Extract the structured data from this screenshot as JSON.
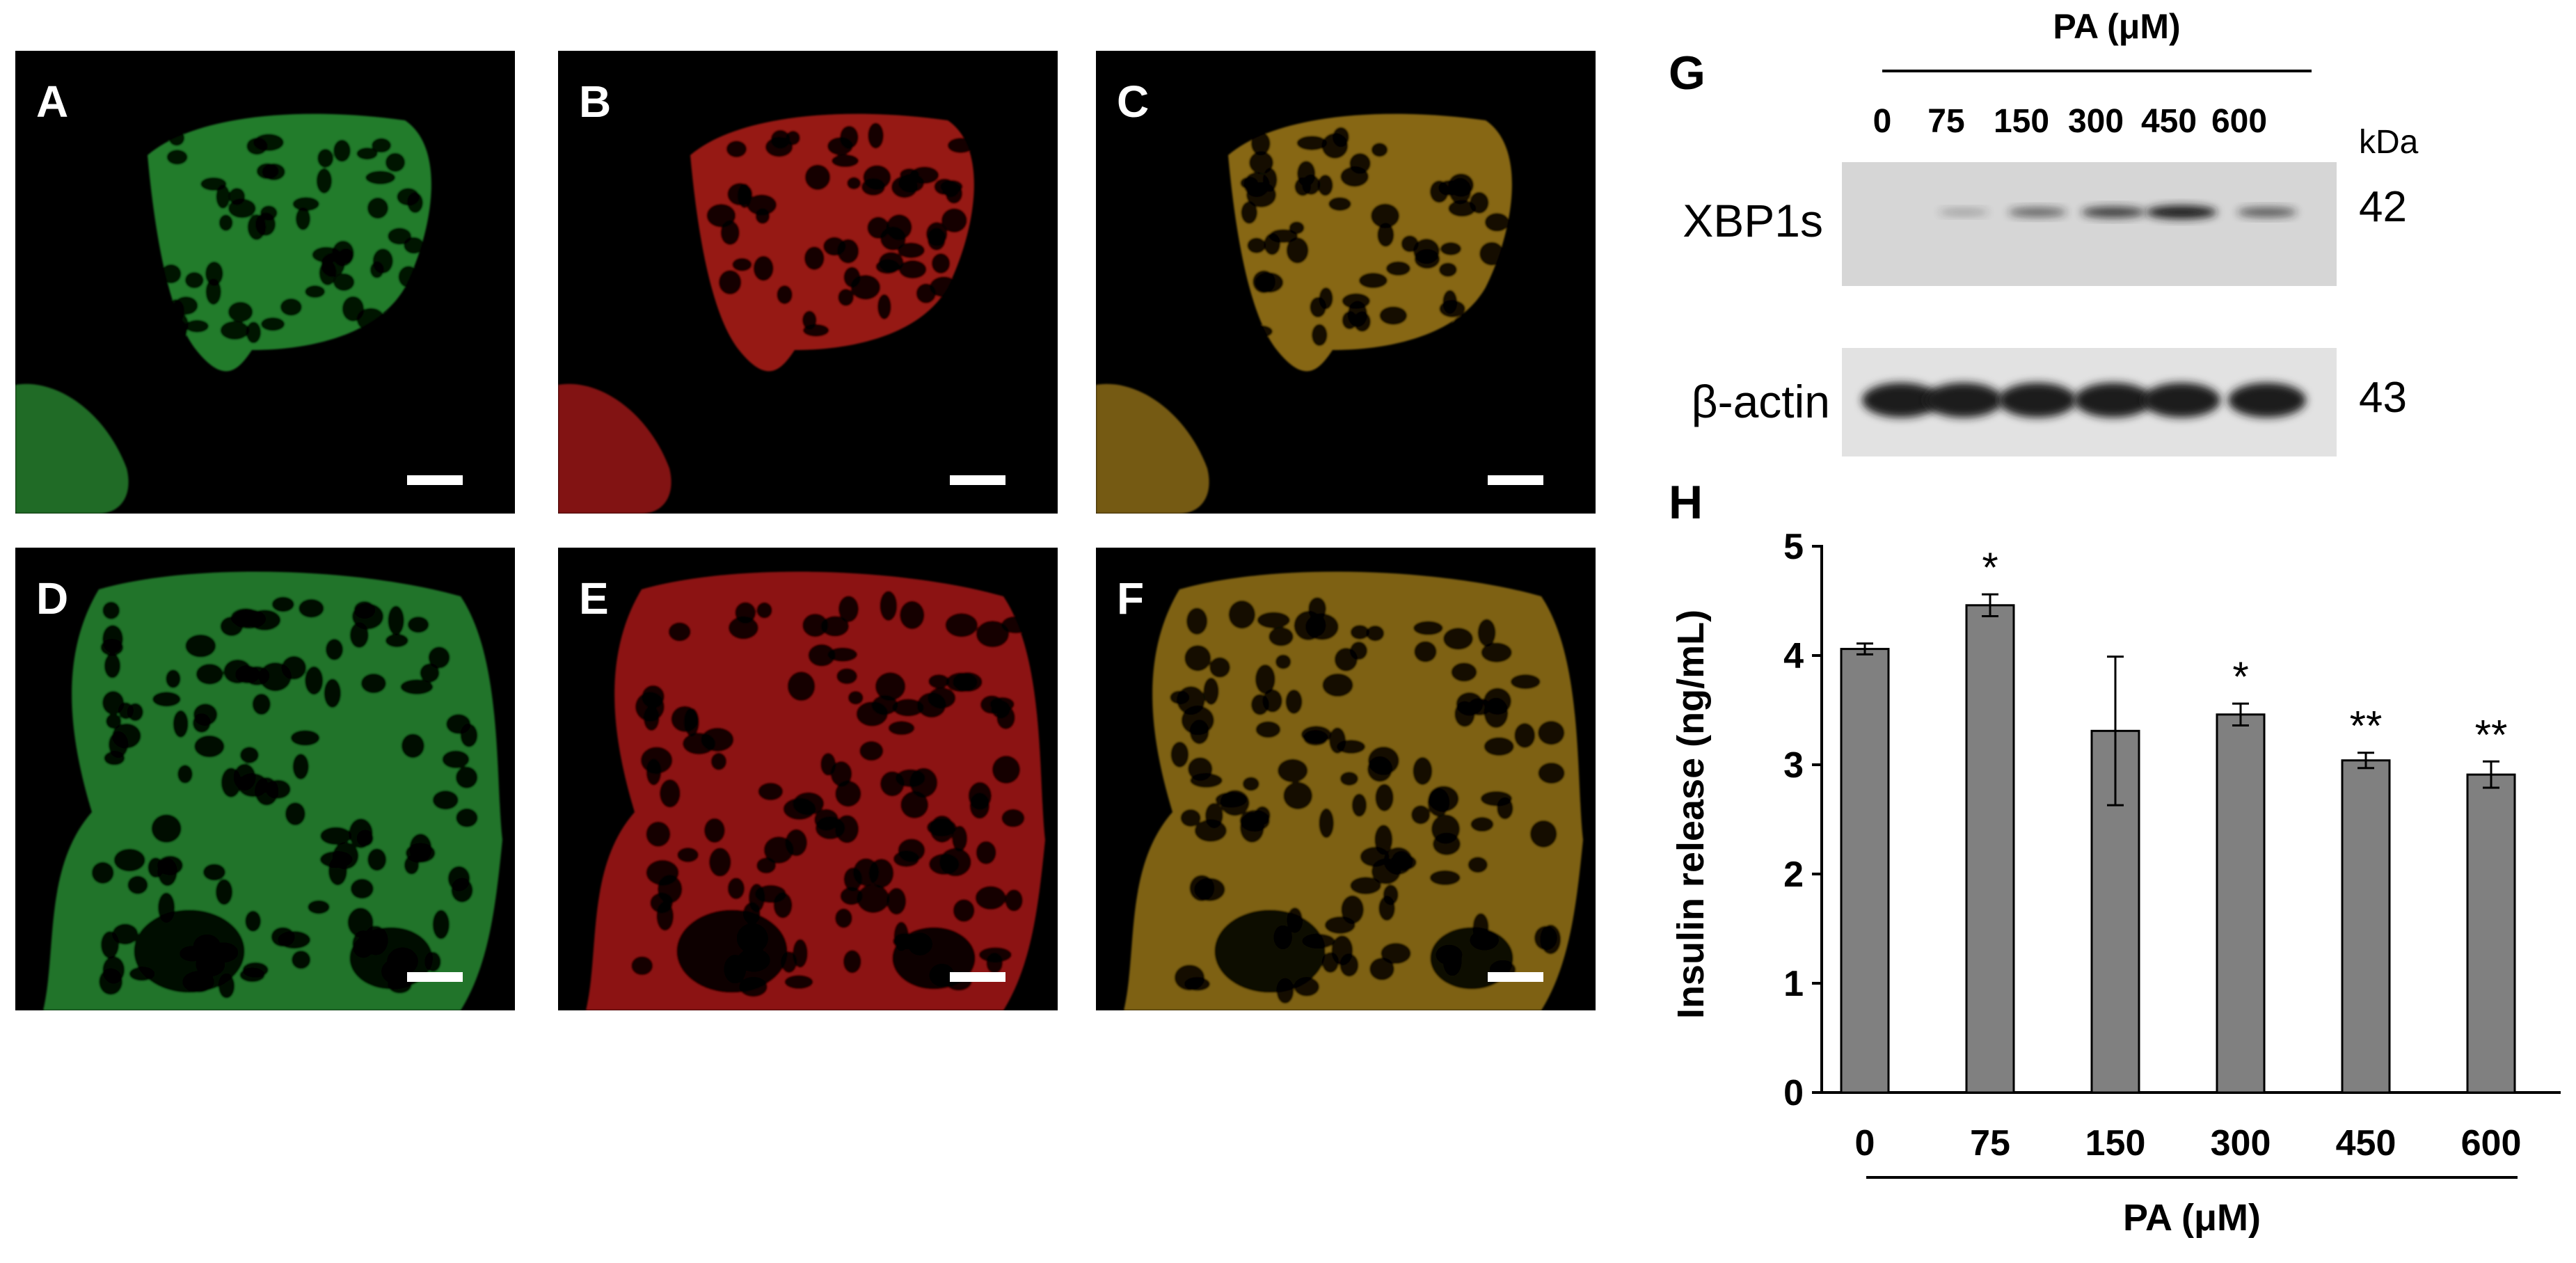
{
  "panels": {
    "micro": [
      {
        "letter": "A",
        "channel": "green"
      },
      {
        "letter": "B",
        "channel": "red"
      },
      {
        "letter": "C",
        "channel": "merge"
      },
      {
        "letter": "D",
        "channel": "green"
      },
      {
        "letter": "E",
        "channel": "red"
      },
      {
        "letter": "F",
        "channel": "merge"
      }
    ],
    "g": {
      "letter": "G",
      "header": "PA (μM)",
      "lanes": [
        "0",
        "75",
        "150",
        "300",
        "450",
        "600"
      ],
      "kda_label": "kDa",
      "blots": [
        {
          "name": "XBP1s",
          "kda": "42",
          "intensities": [
            0.0,
            0.05,
            0.35,
            0.55,
            0.8,
            0.4
          ]
        },
        {
          "name": "β-actin",
          "kda": "43",
          "intensities": [
            0.85,
            0.9,
            0.92,
            0.92,
            0.9,
            0.85
          ]
        }
      ]
    }
  },
  "colors": {
    "green": "#2fa53a",
    "red": "#c8201a",
    "merge": "#b48a1e",
    "bar": "#808080",
    "blot_bg": "#d9d9d9",
    "band": "#1a1a1a"
  },
  "chart_data": {
    "panel_letter": "H",
    "type": "bar",
    "categories": [
      "0",
      "75",
      "150",
      "300",
      "450",
      "600"
    ],
    "values": [
      4.06,
      4.46,
      3.31,
      3.46,
      3.04,
      2.91
    ],
    "errors": [
      0.05,
      0.1,
      0.68,
      0.1,
      0.07,
      0.12
    ],
    "significance": [
      "",
      "*",
      "",
      "*",
      "**",
      "**"
    ],
    "ylabel": "Insulin release  (ng/mL)",
    "xlabel": "PA (μM)",
    "ylim": [
      0,
      5
    ],
    "yticks": [
      "0",
      "1",
      "2",
      "3",
      "4",
      "5"
    ],
    "grid": false
  }
}
